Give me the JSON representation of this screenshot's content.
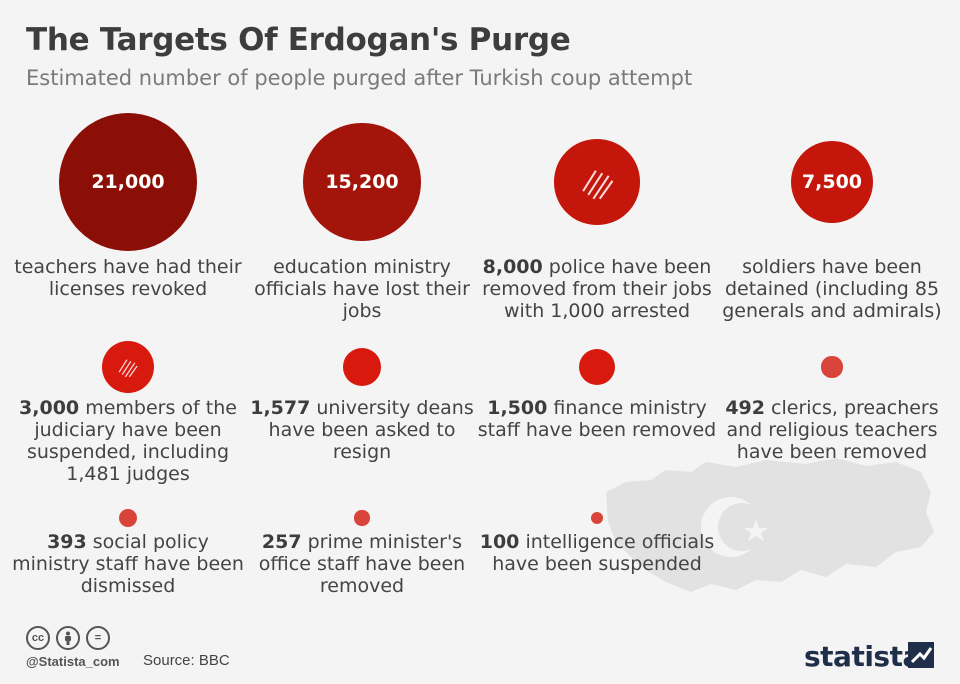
{
  "title": "The Targets Of Erdogan's Purge",
  "subtitle": "Estimated number of people purged after Turkish coup attempt",
  "chart_data": {
    "type": "bubble",
    "title": "The Targets Of Erdogan's Purge",
    "subtitle": "Estimated number of people purged after Turkish coup attempt",
    "items": [
      {
        "value": 21000,
        "value_label": "21,000",
        "label_before": "",
        "label_after": "teachers have had their licenses revoked",
        "value_inside": true,
        "hatched": false
      },
      {
        "value": 15200,
        "value_label": "15,200",
        "label_before": "",
        "label_after": "education ministry officials have lost their jobs",
        "value_inside": true,
        "hatched": false
      },
      {
        "value": 8000,
        "value_label": "8,000",
        "label_before": "8,000",
        "label_after": " police have been removed from their jobs with 1,000 arrested",
        "value_inside": false,
        "hatched": true
      },
      {
        "value": 7500,
        "value_label": "7,500",
        "label_before": "",
        "label_after": "soldiers have been detained (including 85 generals and admirals)",
        "value_inside": true,
        "hatched": false
      },
      {
        "value": 3000,
        "value_label": "3,000",
        "label_before": "3,000",
        "label_after": " members of the judiciary have been suspended, including 1,481 judges",
        "value_inside": false,
        "hatched": true
      },
      {
        "value": 1577,
        "value_label": "1,577",
        "label_before": "1,577",
        "label_after": " university deans have been asked to resign",
        "value_inside": false,
        "hatched": false
      },
      {
        "value": 1500,
        "value_label": "1,500",
        "label_before": "1,500",
        "label_after": " finance ministry staff have been removed",
        "value_inside": false,
        "hatched": false
      },
      {
        "value": 492,
        "value_label": "492",
        "label_before": "492",
        "label_after": " clerics, preachers and religious teachers have been removed",
        "value_inside": false,
        "hatched": false
      },
      {
        "value": 393,
        "value_label": "393",
        "label_before": "393",
        "label_after": " social policy ministry staff have been dismissed",
        "value_inside": false,
        "hatched": false
      },
      {
        "value": 257,
        "value_label": "257",
        "label_before": "257",
        "label_after": " prime minister's office staff have been removed",
        "value_inside": false,
        "hatched": false
      },
      {
        "value": 100,
        "value_label": "100",
        "label_before": "100",
        "label_after": " intelligence officials have been suspended",
        "value_inside": false,
        "hatched": false
      }
    ]
  },
  "footer": {
    "handle": "@Statista_com",
    "source": "Source: BBC",
    "brand": "statista",
    "icons": [
      "cc-icon",
      "attribution-icon",
      "no-derivatives-icon"
    ]
  },
  "colors": {
    "dark_red": "#8b0f06",
    "mid_red": "#a3150a",
    "red": "#c4160b",
    "bright_red": "#d8190e",
    "light_red": "#d9443a",
    "map": "#e2e2e2"
  }
}
